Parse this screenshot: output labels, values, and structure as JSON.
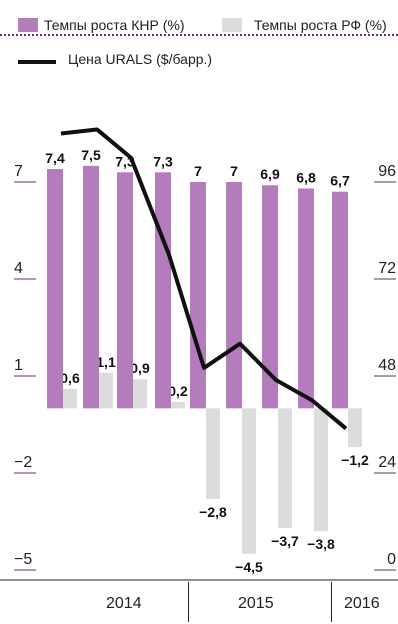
{
  "legend": {
    "china_label": "Темпы роста КНР (%)",
    "russia_label": "Темпы роста РФ (%)",
    "urals_label": "Цена URALS ($/барр.)"
  },
  "colors": {
    "china": "#b47cbc",
    "russia": "#dcdcdc",
    "urals": "#111111",
    "axis": "#6a2f72"
  },
  "chart_data": {
    "type": "bar",
    "categories": [
      "",
      "",
      "",
      "",
      "",
      "",
      "",
      "",
      ""
    ],
    "series": [
      {
        "name": "Темпы роста КНР (%)",
        "type": "bar",
        "axis": "left",
        "values": [
          7.4,
          7.5,
          7.3,
          7.3,
          7,
          7,
          6.9,
          6.8,
          6.7
        ],
        "labels": [
          "7,4",
          "7,5",
          "7,3",
          "7,3",
          "7",
          "7",
          "6,9",
          "6,8",
          "6,7"
        ]
      },
      {
        "name": "Темпы роста РФ (%)",
        "type": "bar",
        "axis": "left",
        "values": [
          0.6,
          1.1,
          0.9,
          0.2,
          -2.8,
          -4.5,
          -3.7,
          -3.8,
          -1.2
        ],
        "labels": [
          "0,6",
          "1,1",
          "0,9",
          "0,2",
          "−2,8",
          "−4,5",
          "−3,7",
          "−3,8",
          "−1,2"
        ]
      },
      {
        "name": "Цена URALS ($/барр.)",
        "type": "line",
        "axis": "right",
        "values": [
          108,
          109,
          102,
          78,
          50,
          56,
          47,
          42,
          35
        ]
      }
    ],
    "left_axis": {
      "ticks": [
        7,
        4,
        1,
        -2,
        -5
      ],
      "tick_labels": [
        "7",
        "4",
        "1",
        "−2",
        "−5"
      ],
      "ylim": [
        -5,
        10
      ]
    },
    "right_axis": {
      "ticks": [
        96,
        72,
        48,
        24,
        0
      ],
      "tick_labels": [
        "96",
        "72",
        "48",
        "24",
        "0"
      ],
      "ylim": [
        0,
        120
      ]
    },
    "years": [
      "2014",
      "2015",
      "2016"
    ],
    "grid": false,
    "legend_position": "top"
  }
}
